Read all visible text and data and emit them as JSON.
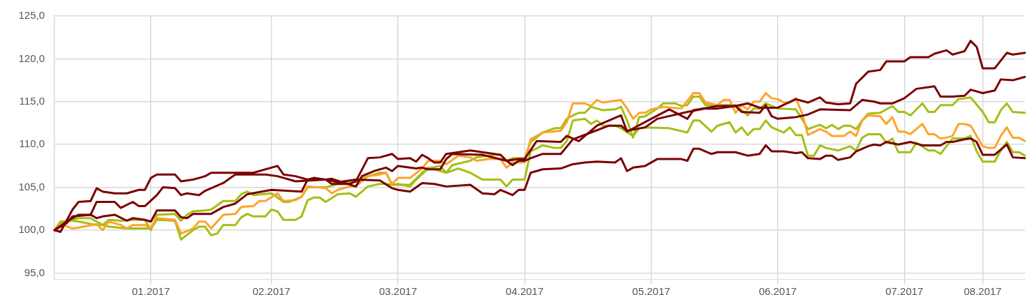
{
  "chart_data": {
    "type": "line",
    "marker": "none",
    "grid": true,
    "categories": [
      null,
      null,
      null,
      null,
      null,
      null,
      null,
      null,
      null,
      null,
      null,
      null,
      null,
      null,
      null,
      null,
      "01.2017",
      null,
      null,
      null,
      null,
      null,
      null,
      null,
      null,
      null,
      null,
      null,
      null,
      null,
      null,
      null,
      null,
      null,
      null,
      null,
      "02.2017",
      null,
      null,
      null,
      null,
      null,
      null,
      null,
      null,
      null,
      null,
      null,
      null,
      null,
      null,
      null,
      null,
      null,
      null,
      null,
      null,
      "03.2017",
      null,
      null,
      null,
      null,
      null,
      null,
      null,
      null,
      null,
      null,
      null,
      null,
      null,
      null,
      null,
      null,
      null,
      null,
      null,
      null,
      "04.2017",
      null,
      null,
      null,
      null,
      null,
      null,
      null,
      null,
      null,
      null,
      null,
      null,
      null,
      null,
      null,
      null,
      null,
      null,
      null,
      null,
      "05.2017",
      null,
      null,
      null,
      null,
      null,
      null,
      null,
      null,
      null,
      null,
      null,
      null,
      null,
      null,
      null,
      null,
      null,
      null,
      null,
      null,
      "06.2017",
      null,
      null,
      null,
      null,
      null,
      null,
      null,
      null,
      null,
      null,
      null,
      null,
      null,
      null,
      null,
      null,
      null,
      null,
      null,
      null,
      "07.2017",
      null,
      null,
      null,
      null,
      null,
      null,
      null,
      null,
      null,
      null,
      null,
      null,
      "08.2017",
      null,
      null,
      null,
      null,
      null,
      null,
      null
    ],
    "ylim": [
      94.3,
      125
    ],
    "yticks": [
      {
        "value": 95,
        "label": "95,0"
      },
      {
        "value": 100,
        "label": "100,0"
      },
      {
        "value": 105,
        "label": "105,0"
      },
      {
        "value": 110,
        "label": "110,0"
      },
      {
        "value": 115,
        "label": "115,0"
      },
      {
        "value": 120,
        "label": "120,0"
      },
      {
        "value": 125,
        "label": "125,0"
      }
    ],
    "series": [
      {
        "color": "#7a0000",
        "values": [
          100,
          99.8,
          null,
          102.4,
          103.3,
          null,
          103.4,
          104.9,
          104.5,
          null,
          104.3,
          null,
          104.3,
          104.5,
          104.7,
          104.7,
          106.1,
          106.5,
          null,
          null,
          106.5,
          105.7,
          null,
          105.9,
          null,
          106.3,
          106.7,
          null,
          null,
          null,
          null,
          106.7,
          null,
          106.7,
          null,
          null,
          null,
          107.5,
          106.5,
          null,
          106.3,
          null,
          105.9,
          null,
          null,
          105.9,
          105.4,
          null,
          null,
          105.4,
          105.7,
          null,
          108.4,
          null,
          108.5,
          null,
          108.9,
          108.3,
          null,
          108.4,
          108,
          108.8,
          108.4,
          107.9,
          107.9,
          108.9,
          null,
          null,
          null,
          109.3,
          null,
          109.1,
          null,
          null,
          108.8,
          108.1,
          null,
          108.3,
          108.3,
          null,
          110.4,
          null,
          null,
          null,
          110.3,
          111,
          null,
          110.4,
          null,
          null,
          112.2,
          null,
          null,
          null,
          113.4,
          111.5,
          null,
          null,
          null,
          113,
          null,
          null,
          114.1,
          null,
          null,
          113,
          114,
          null,
          null,
          null,
          114.5,
          null,
          null,
          114.5,
          null,
          114.8,
          null,
          114.3,
          null,
          null,
          114.3,
          null,
          null,
          115.3,
          null,
          114.9,
          null,
          115.5,
          114.9,
          null,
          114.7,
          null,
          114.8,
          117.1,
          null,
          118.5,
          null,
          118.7,
          119.7,
          null,
          null,
          119.7,
          120.2,
          null,
          null,
          120.2,
          120.6,
          null,
          121,
          120.5,
          null,
          120.9,
          122.1,
          121.4,
          118.9,
          null,
          118.9,
          119.8,
          120.7,
          120.5,
          null,
          120.7
        ]
      },
      {
        "color": "#7a0000",
        "values": [
          100,
          null,
          101,
          null,
          101.8,
          null,
          101.8,
          103.3,
          null,
          null,
          103.3,
          102.6,
          null,
          103.3,
          102.8,
          102.8,
          null,
          104.1,
          105,
          null,
          104.9,
          104.1,
          104.3,
          null,
          104.1,
          104.6,
          null,
          null,
          105.5,
          null,
          106.5,
          null,
          null,
          106.5,
          null,
          106.5,
          null,
          106.3,
          null,
          null,
          105.7,
          null,
          null,
          null,
          null,
          105.9,
          106,
          null,
          null,
          null,
          105.1,
          106.3,
          null,
          106.9,
          null,
          107.3,
          106.9,
          107.5,
          null,
          null,
          107.2,
          107.3,
          107.1,
          null,
          107.1,
          108.3,
          108.9,
          null,
          null,
          null,
          null,
          108.8,
          null,
          null,
          null,
          108.1,
          107.6,
          108.1,
          108.1,
          108.4,
          null,
          108.9,
          null,
          null,
          108.9,
          null,
          110.6,
          null,
          null,
          111.4,
          null,
          null,
          112.2,
          null,
          112.2,
          111.6,
          null,
          null,
          112,
          null,
          113,
          null,
          null,
          null,
          null,
          113.8,
          null,
          null,
          114.2,
          null,
          114.2,
          null,
          null,
          114.5,
          113.8,
          null,
          null,
          113.7,
          114.6,
          113.3,
          113,
          null,
          null,
          113.2,
          null,
          113.5,
          null,
          114.1,
          null,
          null,
          null,
          null,
          114,
          null,
          115.2,
          null,
          115,
          114.8,
          null,
          114.8,
          null,
          115.4,
          null,
          116.5,
          null,
          null,
          116.8,
          115.6,
          null,
          115.6,
          null,
          115.7,
          116.4,
          null,
          116,
          null,
          116.3,
          117.6,
          null,
          117.5,
          null,
          117.9
        ]
      },
      {
        "color": "#7a0000",
        "values": [
          100,
          null,
          100.8,
          101.6,
          null,
          null,
          101.8,
          101.4,
          101.6,
          null,
          101.8,
          null,
          101.1,
          101.4,
          null,
          101.2,
          101,
          102.3,
          null,
          null,
          102.3,
          101.5,
          101.4,
          101.9,
          null,
          101.9,
          101.9,
          null,
          102.7,
          null,
          103.1,
          null,
          104.2,
          null,
          null,
          null,
          104.7,
          null,
          null,
          null,
          null,
          104.5,
          105.9,
          106.1,
          null,
          105.9,
          null,
          105.6,
          null,
          null,
          105.9,
          null,
          null,
          null,
          105.8,
          null,
          104.9,
          104.7,
          null,
          104.5,
          null,
          105.5,
          null,
          105.4,
          null,
          105.1,
          null,
          null,
          null,
          105.3,
          null,
          104.3,
          null,
          104.2,
          104.7,
          null,
          104.1,
          104.7,
          104.7,
          106.7,
          null,
          107.1,
          null,
          null,
          107.2,
          null,
          107.7,
          null,
          107.9,
          null,
          108,
          null,
          null,
          107.9,
          108.4,
          106.9,
          107.3,
          null,
          107.5,
          null,
          108.3,
          null,
          null,
          null,
          108.3,
          108.1,
          109.5,
          109.5,
          null,
          108.9,
          109.1,
          null,
          null,
          109.1,
          null,
          108.7,
          null,
          108.9,
          109.9,
          109.2,
          null,
          109.2,
          null,
          109,
          109.1,
          108.4,
          null,
          108.3,
          108.7,
          108.7,
          108.2,
          null,
          108.5,
          109.2,
          109.5,
          109.8,
          110,
          109.9,
          110.3,
          null,
          110,
          null,
          110.3,
          null,
          109.9,
          null,
          null,
          109.9,
          110.3,
          110.3,
          null,
          110.6,
          110.7,
          110.3,
          108.8,
          null,
          108.8,
          null,
          110,
          108.5,
          null,
          108.4
        ]
      },
      {
        "color": "#ffa32b",
        "values": [
          100,
          100.7,
          null,
          100.2,
          100.3,
          null,
          null,
          100.7,
          100,
          101,
          null,
          100.6,
          100.2,
          100.6,
          null,
          100.6,
          100.3,
          101.4,
          null,
          null,
          101.2,
          99.6,
          null,
          100.2,
          101,
          101,
          100.2,
          null,
          101.8,
          null,
          101.9,
          102.7,
          null,
          102.8,
          103.4,
          103.4,
          null,
          104.3,
          103.4,
          null,
          103.5,
          103.9,
          105.1,
          null,
          null,
          104.9,
          104.3,
          104.7,
          null,
          105.1,
          105.1,
          null,
          106.3,
          null,
          106.5,
          106.7,
          105.4,
          106.1,
          null,
          106.1,
          null,
          107.2,
          108.1,
          null,
          108.1,
          107.7,
          null,
          108.7,
          null,
          108.5,
          108.1,
          null,
          108.3,
          null,
          108.3,
          107.3,
          107.9,
          null,
          107.9,
          110.6,
          null,
          111.4,
          null,
          null,
          111.6,
          112.6,
          114.8,
          null,
          114.8,
          114.5,
          115.2,
          114.9,
          null,
          null,
          115.2,
          114.2,
          113,
          113.7,
          113.7,
          114.1,
          null,
          114.4,
          null,
          null,
          114.2,
          null,
          116,
          116,
          114.9,
          null,
          114.6,
          115.2,
          115.2,
          113.7,
          114.6,
          114.1,
          115,
          115,
          116,
          115.4,
          115.3,
          114.9,
          114.9,
          115.4,
          113.7,
          111.1,
          null,
          111.8,
          111.5,
          111,
          null,
          111,
          111.5,
          111,
          112.8,
          113.4,
          null,
          113.3,
          112.4,
          113.2,
          111.5,
          111.5,
          111.2,
          null,
          112.4,
          111.2,
          111.2,
          110.7,
          110.8,
          111,
          112.4,
          112.4,
          112.2,
          null,
          109.8,
          109.6,
          109.6,
          111,
          112,
          110.8,
          110.8,
          110.4
        ]
      },
      {
        "color": "#a3bf14",
        "values": [
          100,
          100.8,
          null,
          101.2,
          101.4,
          null,
          101.4,
          101,
          100.6,
          101.2,
          null,
          101.1,
          null,
          101.2,
          null,
          101.2,
          100,
          101.8,
          null,
          null,
          101.9,
          101.1,
          101.8,
          102.2,
          null,
          102.3,
          102.4,
          null,
          103.4,
          null,
          103.4,
          104.2,
          104.5,
          104.1,
          null,
          null,
          104.3,
          103.8,
          103.3,
          103.3,
          null,
          103.9,
          105,
          null,
          null,
          105,
          null,
          105.4,
          null,
          null,
          105.7,
          null,
          106.3,
          null,
          106.7,
          106.7,
          105.3,
          105.4,
          null,
          105.1,
          105.9,
          null,
          107.2,
          null,
          107.5,
          106.7,
          107.6,
          null,
          null,
          108.1,
          108.5,
          null,
          null,
          108.8,
          108.8,
          108.1,
          108.4,
          null,
          108.4,
          110.3,
          null,
          111.4,
          null,
          111.9,
          111.9,
          113,
          113.4,
          113.7,
          113.7,
          114.4,
          null,
          114,
          null,
          114.1,
          114.4,
          112.8,
          110.8,
          113.2,
          113.3,
          null,
          114.2,
          114.8,
          null,
          114.8,
          114.5,
          114.6,
          115.6,
          115.6,
          114.6,
          null,
          114.6,
          null,
          null,
          114.6,
          null,
          113.4,
          114.2,
          114.2,
          114.8,
          null,
          114.2,
          null,
          null,
          114.1,
          113,
          111.8,
          null,
          112.3,
          111.9,
          112.3,
          111.8,
          112.2,
          112.2,
          111.8,
          112.8,
          113.6,
          null,
          113.7,
          114.1,
          114.5,
          113.8,
          113.8,
          113.4,
          null,
          114.8,
          113.8,
          113.8,
          114.6,
          null,
          114.6,
          115.3,
          null,
          115.5,
          null,
          113.8,
          112.6,
          112.6,
          114,
          114.8,
          113.8,
          null,
          113.7
        ]
      },
      {
        "color": "#a3bf14",
        "values": [
          100,
          101,
          null,
          101.1,
          101,
          null,
          null,
          100.6,
          100.6,
          100.4,
          null,
          null,
          100.2,
          null,
          null,
          null,
          100.2,
          101.2,
          null,
          null,
          101.1,
          98.9,
          null,
          100,
          100.4,
          100.4,
          99.4,
          99.6,
          100.6,
          null,
          100.6,
          101.5,
          101.9,
          101.6,
          null,
          101.6,
          102.4,
          102.2,
          101.2,
          null,
          101.2,
          101.6,
          103.5,
          103.8,
          103.8,
          103.3,
          null,
          104.2,
          null,
          104.3,
          103.9,
          null,
          105.1,
          null,
          105.4,
          105.4,
          105.3,
          105.3,
          null,
          105.3,
          null,
          106.7,
          107.3,
          null,
          106.9,
          106.7,
          null,
          107.2,
          null,
          106.7,
          null,
          105.9,
          null,
          null,
          105.9,
          105.1,
          105.9,
          null,
          105.9,
          109.2,
          null,
          109.9,
          null,
          109.6,
          109.6,
          110.4,
          112.8,
          null,
          113,
          112.4,
          112.8,
          112.2,
          null,
          112.2,
          111.9,
          null,
          111,
          111.9,
          112,
          null,
          null,
          null,
          111.9,
          null,
          null,
          111.4,
          112.8,
          112.8,
          null,
          111.5,
          112.2,
          null,
          112.6,
          111.4,
          112,
          111.1,
          111.8,
          111.8,
          112.8,
          112,
          null,
          111.4,
          112,
          111.1,
          111.1,
          108.7,
          108.7,
          109.9,
          109.6,
          null,
          109.3,
          null,
          109.8,
          109.3,
          110.8,
          111.2,
          null,
          111.2,
          110.2,
          110.7,
          109.1,
          null,
          109.1,
          110.2,
          null,
          109.3,
          109.3,
          108.9,
          109.8,
          110.7,
          null,
          110.7,
          111,
          109.2,
          108,
          null,
          108,
          109.3,
          110.3,
          109.1,
          109.1,
          108.7
        ]
      }
    ]
  }
}
